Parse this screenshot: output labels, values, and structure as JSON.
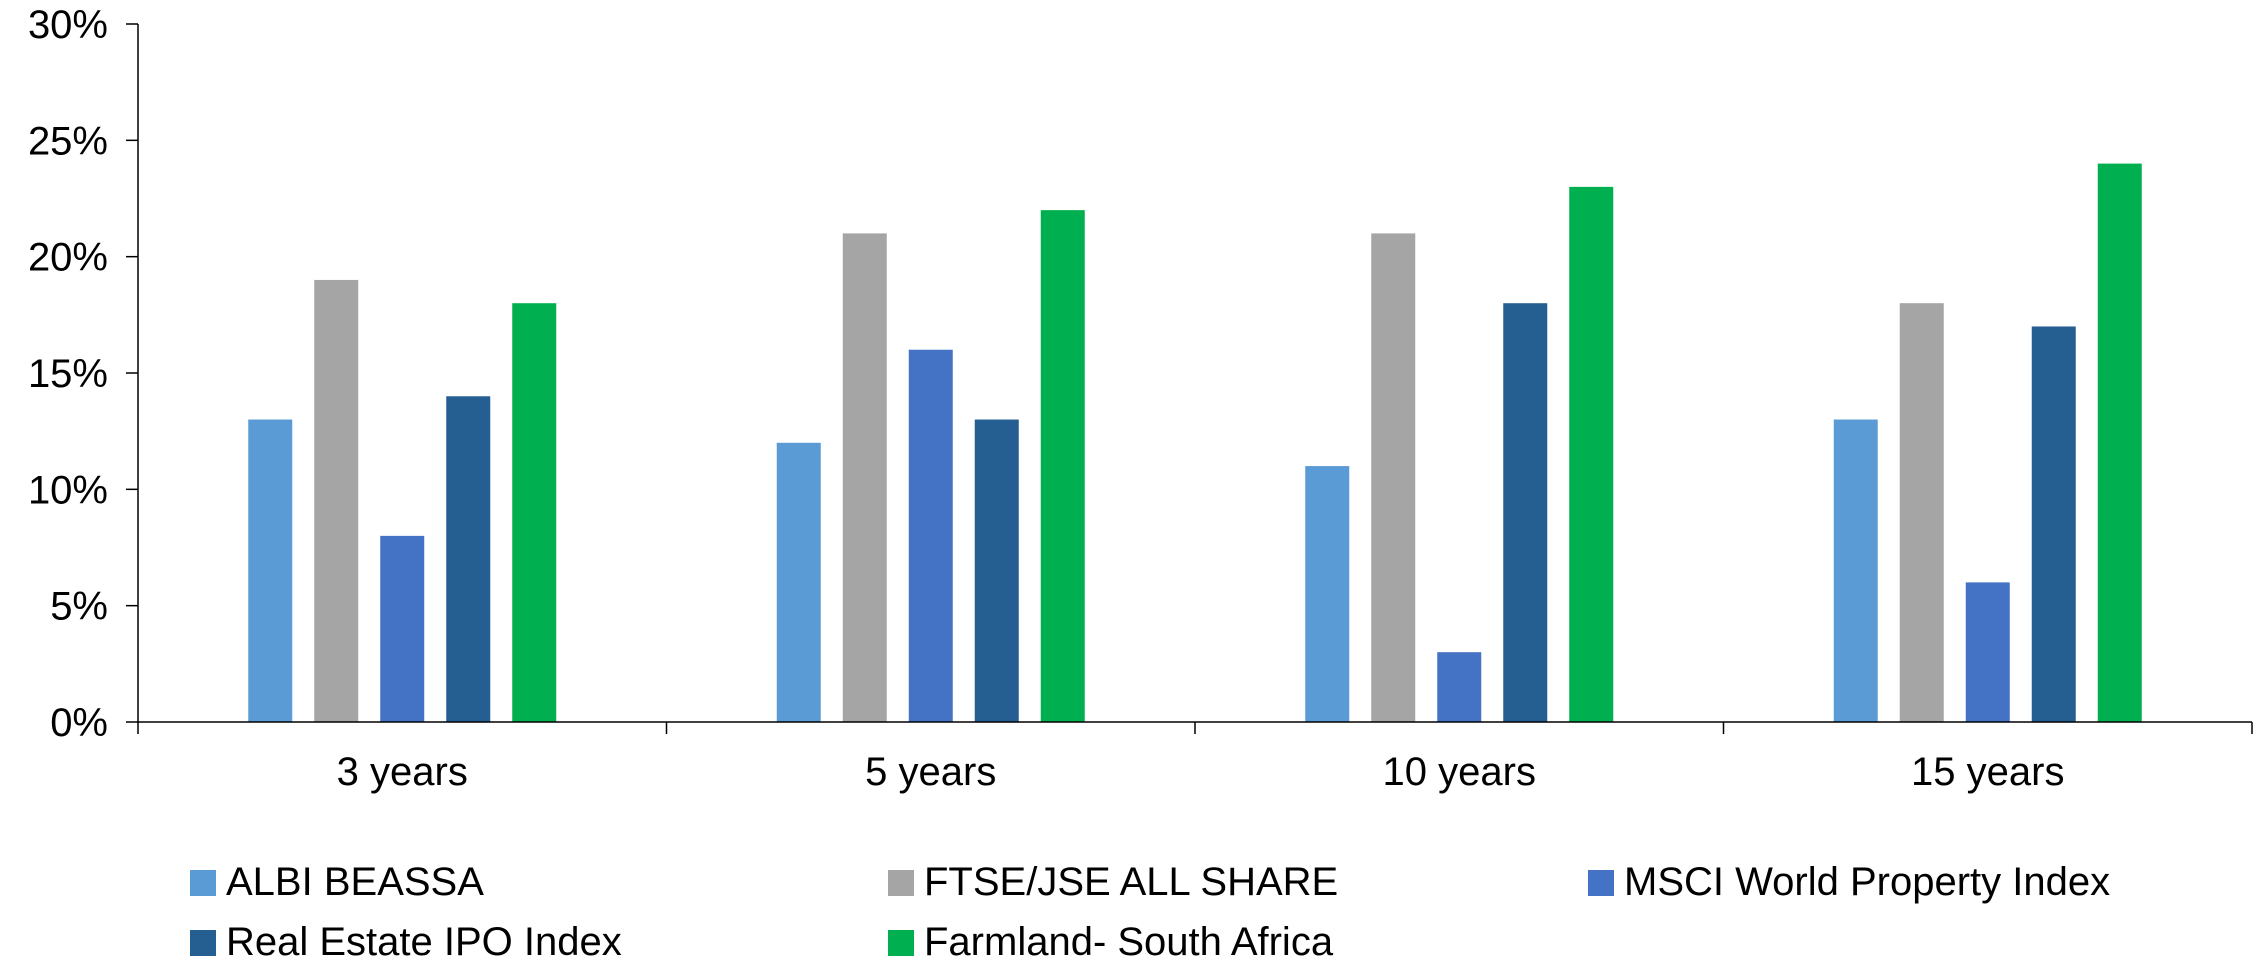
{
  "chart_data": {
    "type": "bar",
    "title": "",
    "xlabel": "",
    "ylabel": "",
    "categories": [
      "3 years",
      "5 years",
      "10 years",
      "15 years"
    ],
    "ylim": [
      0,
      30
    ],
    "yticks": [
      "0%",
      "5%",
      "10%",
      "15%",
      "20%",
      "25%",
      "30%"
    ],
    "ytick_values": [
      0,
      5,
      10,
      15,
      20,
      25,
      30
    ],
    "grid": false,
    "legend_position": "bottom",
    "series": [
      {
        "name": "ALBI BEASSA",
        "color": "#5B9BD5",
        "values": [
          13,
          12,
          11,
          13
        ]
      },
      {
        "name": "FTSE/JSE ALL SHARE",
        "color": "#A5A5A5",
        "values": [
          19,
          21,
          21,
          18
        ]
      },
      {
        "name": "MSCI World Property Index",
        "color": "#4472C4",
        "values": [
          8,
          16,
          3,
          6
        ]
      },
      {
        "name": "Real Estate IPO Index",
        "color": "#255E91",
        "values": [
          14,
          13,
          18,
          17
        ]
      },
      {
        "name": "Farmland- South Africa",
        "color": "#00B050",
        "values": [
          18,
          22,
          23,
          24
        ]
      }
    ]
  }
}
